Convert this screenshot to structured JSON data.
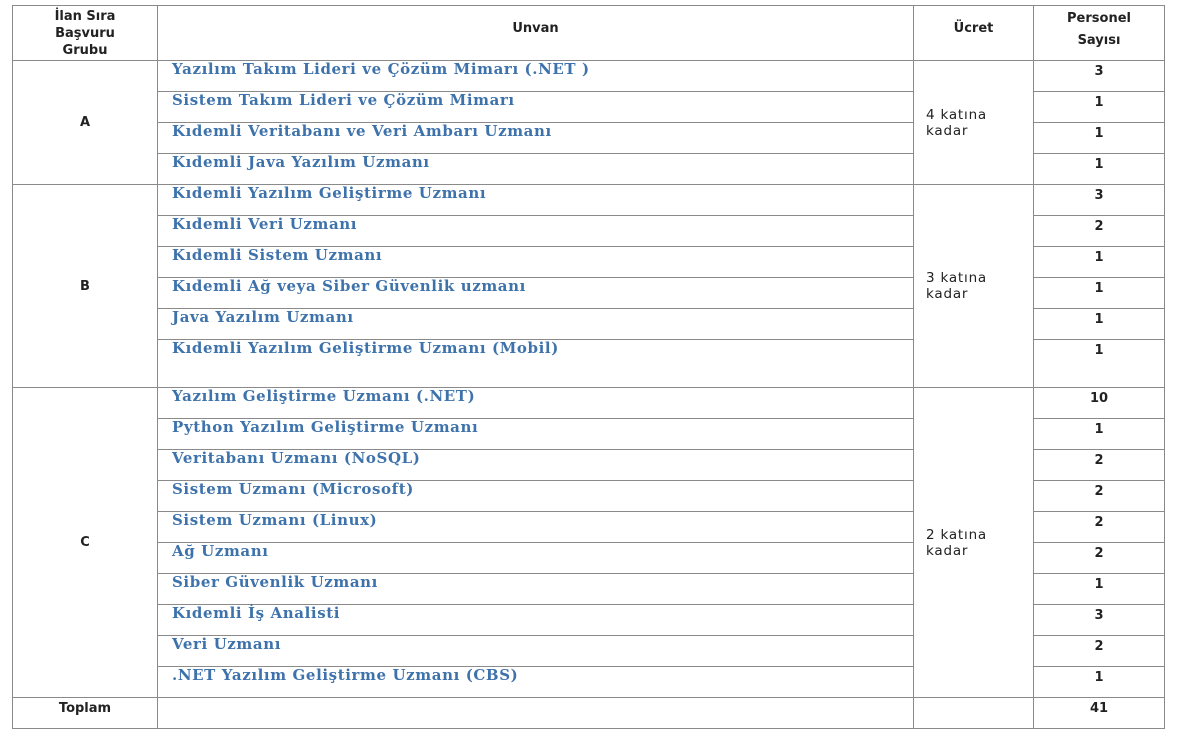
{
  "headers": {
    "group": "İlan Sıra Başvuru Grubu",
    "group_line1": "İlan Sıra",
    "group_line2": "Başvuru",
    "group_line3": "Grubu",
    "title": "Unvan",
    "fee": "Ücret",
    "count_line1": "Personel",
    "count_line2": "Sayısı"
  },
  "groups": [
    {
      "name": "A",
      "fee": "4 katına kadar",
      "rows": [
        {
          "title": "Yazılım Takım Lideri ve Çözüm Mimarı (.NET )",
          "count": "3"
        },
        {
          "title": "Sistem Takım Lideri ve Çözüm Mimarı",
          "count": "1"
        },
        {
          "title": "Kıdemli Veritabanı ve Veri Ambarı Uzmanı",
          "count": "1"
        },
        {
          "title": "Kıdemli Java Yazılım Uzmanı",
          "count": "1"
        }
      ]
    },
    {
      "name": "B",
      "fee": "3 katına kadar",
      "rows": [
        {
          "title": "Kıdemli Yazılım Geliştirme Uzmanı",
          "count": "3"
        },
        {
          "title": "Kıdemli  Veri Uzmanı",
          "count": "2"
        },
        {
          "title": "Kıdemli Sistem Uzmanı",
          "count": "1"
        },
        {
          "title": "Kıdemli Ağ veya Siber Güvenlik uzmanı",
          "count": "1"
        },
        {
          "title": "Java Yazılım Uzmanı",
          "count": "1"
        },
        {
          "title": "Kıdemli Yazılım Geliştirme Uzmanı (Mobil)",
          "count": "1"
        }
      ]
    },
    {
      "name": "C",
      "fee": "2 katına kadar",
      "rows": [
        {
          "title": "Yazılım Geliştirme Uzmanı (.NET)",
          "count": "10"
        },
        {
          "title": "Python Yazılım Geliştirme Uzmanı",
          "count": "1"
        },
        {
          "title": "Veritabanı Uzmanı (NoSQL)",
          "count": "2"
        },
        {
          "title": "Sistem Uzmanı (Microsoft)",
          "count": "2"
        },
        {
          "title": "Sistem Uzmanı (Linux)",
          "count": "2"
        },
        {
          "title": "Ağ Uzmanı",
          "count": "2"
        },
        {
          "title": "Siber Güvenlik Uzmanı",
          "count": "1"
        },
        {
          "title": "Kıdemli İş Analisti",
          "count": "3"
        },
        {
          "title": "Veri Uzmanı",
          "count": "2"
        },
        {
          ".": "",
          "title": ".NET Yazılım Geliştirme Uzmanı (CBS)",
          "count": "1"
        }
      ]
    }
  ],
  "total": {
    "label": "Toplam",
    "count": "41"
  }
}
